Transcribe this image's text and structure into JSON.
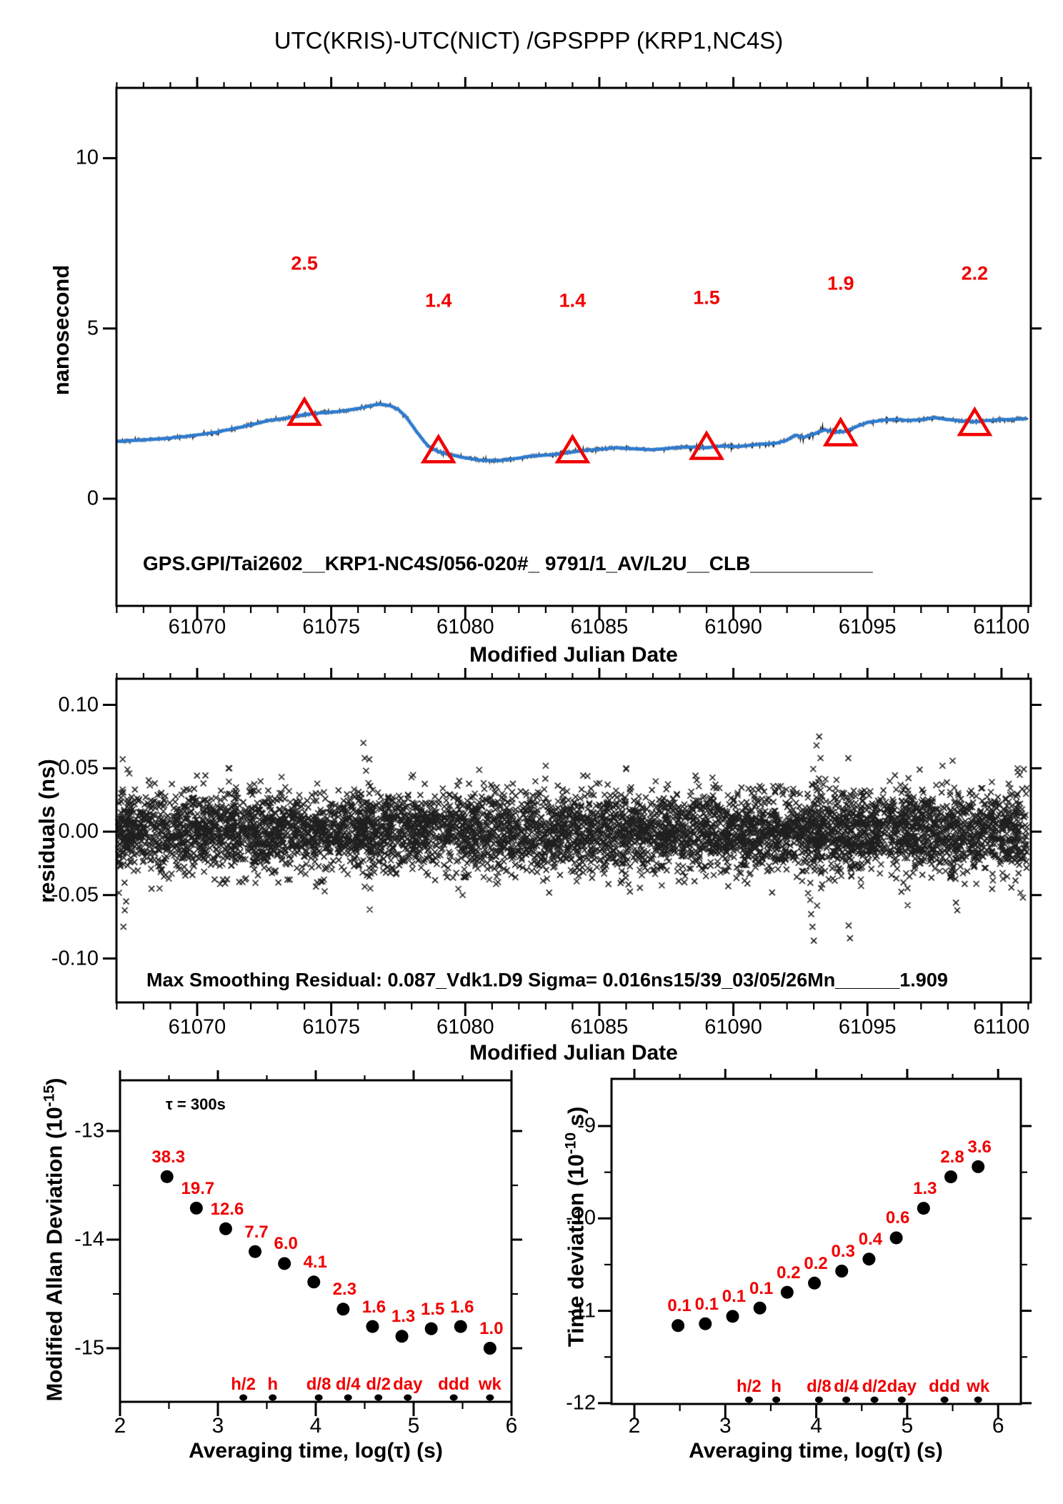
{
  "title": "UTC(KRIS)-UTC(NICT)  /GPSPPP  (KRP1,NC4S)",
  "chart_data": [
    {
      "id": "phase",
      "type": "line",
      "title": "",
      "xlabel": "Modified Julian Date",
      "ylabel": "nanosecond",
      "xlim": [
        61066.99,
        61101.05
      ],
      "ylim": [
        -3.15,
        12.06
      ],
      "grid": false,
      "xticks": {
        "values": [
          61070,
          61075,
          61080,
          61085,
          61090,
          61095,
          61100
        ],
        "labels": [
          "61070",
          "61075",
          "61080",
          "61085",
          "61090",
          "61095",
          "61100"
        ],
        "minor_step": 1
      },
      "yticks": {
        "values": [
          0,
          5,
          10
        ],
        "labels": [
          "0",
          "5",
          "10"
        ]
      },
      "annotation": "GPS.GPI/Tai2602__KRP1-NC4S/056-020#_  9791/1_AV/L2U__CLB___________",
      "line_color": "#2e7bcf",
      "raw_noise_sigma_ns": 0.02,
      "noise_burst": {
        "mjd_center": 61093.1,
        "half_width": 0.7,
        "sigma_ns": 0.07
      },
      "series_keypoints": [
        [
          61067,
          1.68
        ],
        [
          61068,
          1.73
        ],
        [
          61069,
          1.78
        ],
        [
          61070,
          1.87
        ],
        [
          61070.7,
          1.95
        ],
        [
          61071.5,
          2.08
        ],
        [
          61072,
          2.17
        ],
        [
          61072.7,
          2.3
        ],
        [
          61073.3,
          2.36
        ],
        [
          61074,
          2.47
        ],
        [
          61074.6,
          2.52
        ],
        [
          61075.2,
          2.55
        ],
        [
          61075.8,
          2.62
        ],
        [
          61076.3,
          2.7
        ],
        [
          61076.8,
          2.78
        ],
        [
          61077.2,
          2.73
        ],
        [
          61077.5,
          2.62
        ],
        [
          61077.8,
          2.4
        ],
        [
          61078.2,
          1.95
        ],
        [
          61078.6,
          1.55
        ],
        [
          61079,
          1.38
        ],
        [
          61079.5,
          1.28
        ],
        [
          61080,
          1.2
        ],
        [
          61080.6,
          1.13
        ],
        [
          61081.2,
          1.12
        ],
        [
          61081.8,
          1.17
        ],
        [
          61082.4,
          1.25
        ],
        [
          61083,
          1.28
        ],
        [
          61083.6,
          1.32
        ],
        [
          61084,
          1.38
        ],
        [
          61084.5,
          1.42
        ],
        [
          61085,
          1.45
        ],
        [
          61085.6,
          1.5
        ],
        [
          61086.2,
          1.47
        ],
        [
          61087,
          1.44
        ],
        [
          61087.6,
          1.48
        ],
        [
          61088.2,
          1.52
        ],
        [
          61089,
          1.5
        ],
        [
          61089.6,
          1.55
        ],
        [
          61090.2,
          1.53
        ],
        [
          61091,
          1.6
        ],
        [
          61091.6,
          1.63
        ],
        [
          61092,
          1.72
        ],
        [
          61092.3,
          1.87
        ],
        [
          61092.6,
          1.8
        ],
        [
          61093,
          1.9
        ],
        [
          61093.4,
          2.02
        ],
        [
          61093.8,
          1.95
        ],
        [
          61094.2,
          1.98
        ],
        [
          61094.6,
          2.12
        ],
        [
          61095,
          2.24
        ],
        [
          61095.5,
          2.3
        ],
        [
          61096,
          2.33
        ],
        [
          61096.5,
          2.3
        ],
        [
          61097,
          2.32
        ],
        [
          61097.5,
          2.38
        ],
        [
          61098,
          2.33
        ],
        [
          61098.5,
          2.28
        ],
        [
          61099,
          2.26
        ],
        [
          61099.5,
          2.3
        ],
        [
          61100,
          2.32
        ],
        [
          61100.5,
          2.33
        ],
        [
          61101,
          2.36
        ]
      ],
      "markers": {
        "symbol": "triangle-open",
        "color": "#f00000",
        "mjd": [
          61074,
          61079,
          61084,
          61089,
          61094,
          61099
        ],
        "value": [
          2.5,
          1.4,
          1.4,
          1.5,
          1.9,
          2.2
        ],
        "labels": [
          "2.5",
          "1.4",
          "1.4",
          "1.5",
          "1.9",
          "2.2"
        ]
      }
    },
    {
      "id": "residuals",
      "type": "scatter",
      "marker": "x",
      "xlabel": "Modified Julian Date",
      "ylabel": "residuals (ns)",
      "xlim": [
        61066.99,
        61101.05
      ],
      "ylim": [
        -0.135,
        0.121
      ],
      "grid": false,
      "xticks": {
        "values": [
          61070,
          61075,
          61080,
          61085,
          61090,
          61095,
          61100
        ],
        "labels": [
          "61070",
          "61075",
          "61080",
          "61085",
          "61090",
          "61095",
          "61100"
        ],
        "minor_step": 1
      },
      "yticks": {
        "values": [
          0.1,
          0.05,
          0.0,
          -0.05,
          -0.1
        ],
        "labels": [
          "0.10",
          "0.05",
          "0.00",
          "-0.05",
          "-0.10"
        ]
      },
      "annotation": "Max Smoothing Residual: 0.087_Vdk1.D9  Sigma= 0.016ns15/39_03/05/26Mn______1.909",
      "sigma_ns": 0.016,
      "n_points": 6000,
      "seed": 7,
      "bursts": [
        {
          "mjd": 61067.3,
          "n": 22,
          "sigma": 0.028
        },
        {
          "mjd": 61076.25,
          "n": 26,
          "sigma": 0.026
        },
        {
          "mjd": 61093.1,
          "n": 42,
          "sigma": 0.034
        },
        {
          "mjd": 61094.35,
          "n": 16,
          "sigma": 0.03
        },
        {
          "mjd": 61098.3,
          "n": 16,
          "sigma": 0.024
        },
        {
          "mjd": 61100.5,
          "n": 16,
          "sigma": 0.024
        }
      ],
      "outliers": [
        [
          61067.25,
          -0.075
        ],
        [
          61067.3,
          -0.062
        ],
        [
          61067.35,
          -0.055
        ],
        [
          61067.4,
          0.049
        ],
        [
          61068.3,
          -0.045
        ],
        [
          61071.2,
          0.05
        ],
        [
          61076.2,
          0.07
        ],
        [
          61076.25,
          0.058
        ],
        [
          61076.3,
          0.048
        ],
        [
          61079.9,
          -0.05
        ],
        [
          61083.0,
          0.052
        ],
        [
          61086.0,
          0.05
        ],
        [
          61092.9,
          -0.065
        ],
        [
          61092.95,
          -0.075
        ],
        [
          61093.0,
          -0.086
        ],
        [
          61093.1,
          0.068
        ],
        [
          61093.2,
          0.075
        ],
        [
          61093.25,
          0.058
        ],
        [
          61094.3,
          -0.074
        ],
        [
          61094.35,
          -0.084
        ],
        [
          61096.5,
          -0.058
        ],
        [
          61097.8,
          0.052
        ],
        [
          61098.3,
          -0.056
        ],
        [
          61098.35,
          -0.062
        ],
        [
          61100.6,
          0.05
        ],
        [
          61100.8,
          -0.052
        ]
      ]
    },
    {
      "id": "mdev",
      "type": "scatter",
      "marker": "dot",
      "xlabel": "Averaging time, log(τ) (s)",
      "ylabel": {
        "pre": "Modified Allan Deviation (10",
        "sup": "-15",
        "post": ")"
      },
      "annotation": "τ = 300s",
      "xlim": [
        2,
        6
      ],
      "ylim": [
        -15.49,
        -12.53
      ],
      "grid": false,
      "xticks": {
        "values": [
          2,
          3,
          4,
          5,
          6
        ],
        "labels": [
          "2",
          "3",
          "4",
          "5",
          "6"
        ],
        "minor_step": 0.5
      },
      "yticks": {
        "values": [
          -13,
          -14,
          -15
        ],
        "labels": [
          "-13",
          "-14",
          "-15"
        ],
        "minor": [
          -13.5,
          -14.5
        ]
      },
      "log_tau": [
        2.48,
        2.78,
        3.08,
        3.38,
        3.68,
        3.98,
        4.28,
        4.58,
        4.88,
        5.18,
        5.48,
        5.78
      ],
      "values_1e-15": [
        38.3,
        19.7,
        12.6,
        7.7,
        6.0,
        4.1,
        2.3,
        1.6,
        1.3,
        1.5,
        1.6,
        1.0
      ],
      "point_labels": [
        "38.3",
        "19.7",
        "12.6",
        "7.7",
        "6.0",
        "4.1",
        "2.3",
        "1.6",
        "1.3",
        "1.5",
        "1.6",
        "1.0"
      ],
      "plot_log": [
        -13.42,
        -13.71,
        -13.9,
        -14.11,
        -14.22,
        -14.39,
        -14.64,
        -14.8,
        -14.89,
        -14.82,
        -14.8,
        -15.0
      ],
      "label_color": "#f00000",
      "tau_marks": [
        {
          "label": "h/2",
          "log": 3.26
        },
        {
          "label": "h",
          "log": 3.56
        },
        {
          "label": "d/8",
          "log": 4.03
        },
        {
          "label": "d/4",
          "log": 4.33
        },
        {
          "label": "d/2",
          "log": 4.64
        },
        {
          "label": "day",
          "log": 4.94
        },
        {
          "label": "ddd",
          "log": 5.41
        },
        {
          "label": "wk",
          "log": 5.78
        }
      ]
    },
    {
      "id": "tdev",
      "type": "scatter",
      "marker": "dot",
      "xlabel": "Averaging time, log(τ) (s)",
      "ylabel": {
        "pre": "Time deviation (10",
        "sup": "-10",
        "post": " s)"
      },
      "xlim": [
        1.75,
        6.25
      ],
      "ylim": [
        -12.01,
        -8.49
      ],
      "grid": false,
      "xticks": {
        "values": [
          2,
          3,
          4,
          5,
          6
        ],
        "labels": [
          "2",
          "3",
          "4",
          "5",
          "6"
        ],
        "minor_step": 0.5
      },
      "yticks": {
        "values": [
          -9,
          -10,
          -11,
          -12
        ],
        "labels": [
          "-9",
          "-10",
          "-11",
          "-12"
        ],
        "minor": [
          -9.5,
          -10.5,
          -11.5
        ]
      },
      "log_tau": [
        2.48,
        2.78,
        3.08,
        3.38,
        3.68,
        3.98,
        4.28,
        4.58,
        4.88,
        5.18,
        5.48,
        5.78
      ],
      "values_1e-10": [
        0.1,
        0.1,
        0.1,
        0.1,
        0.2,
        0.2,
        0.3,
        0.4,
        0.6,
        1.3,
        2.8,
        3.6
      ],
      "point_labels": [
        "0.1",
        "0.1",
        "0.1",
        "0.1",
        "0.2",
        "0.2",
        "0.3",
        "0.4",
        "0.6",
        "1.3",
        "2.8",
        "3.6"
      ],
      "plot_log": [
        -11.16,
        -11.14,
        -11.06,
        -10.97,
        -10.8,
        -10.7,
        -10.57,
        -10.44,
        -10.21,
        -9.89,
        -9.55,
        -9.44
      ],
      "label_color": "#f00000",
      "tau_marks": [
        {
          "label": "h/2",
          "log": 3.26
        },
        {
          "label": "h",
          "log": 3.56
        },
        {
          "label": "d/8",
          "log": 4.03
        },
        {
          "label": "d/4",
          "log": 4.33
        },
        {
          "label": "d/2",
          "log": 4.64
        },
        {
          "label": "day",
          "log": 4.94
        },
        {
          "label": "ddd",
          "log": 5.41
        },
        {
          "label": "wk",
          "log": 5.78
        }
      ]
    }
  ]
}
